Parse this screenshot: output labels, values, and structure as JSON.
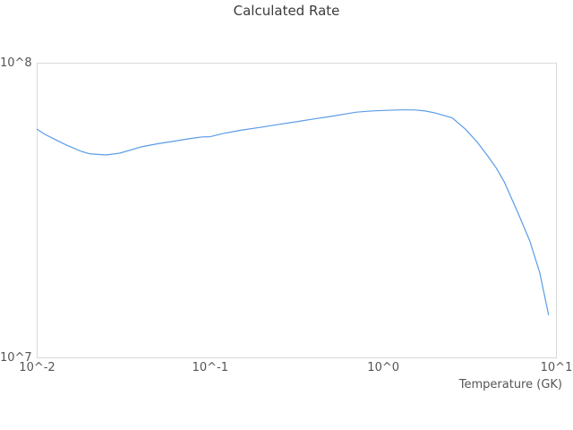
{
  "chart_data": {
    "type": "line",
    "title": "Calculated Rate",
    "xlabel": "Temperature (GK)",
    "ylabel": "",
    "x_scale": "log",
    "y_scale": "log",
    "xlim": [
      0.01,
      10
    ],
    "ylim": [
      10000000.0,
      100000000.0
    ],
    "grid": false,
    "legend": "none",
    "x_ticks": {
      "values": [
        0.01,
        0.1,
        1,
        10
      ],
      "labels": [
        "10^-2",
        "10^-1",
        "10^0",
        "10^1"
      ]
    },
    "y_ticks": {
      "values": [
        10000000.0,
        100000000.0
      ],
      "labels": [
        "10^7",
        "10^8"
      ]
    },
    "series": [
      {
        "name": "calculated_rate",
        "color": "#5b9ce6",
        "x": [
          0.01,
          0.011,
          0.012,
          0.013,
          0.015,
          0.016,
          0.018,
          0.02,
          0.025,
          0.03,
          0.04,
          0.05,
          0.06,
          0.07,
          0.08,
          0.09,
          0.1,
          0.12,
          0.15,
          0.2,
          0.25,
          0.3,
          0.4,
          0.5,
          0.6,
          0.7,
          0.8,
          0.9,
          1.0,
          1.25,
          1.5,
          1.75,
          2.0,
          2.5,
          3.0,
          3.5,
          4.0,
          4.5,
          5.0,
          6.0,
          7.0,
          8.0,
          9.0
        ],
        "y": [
          59700000.0,
          57500000.0,
          56000000.0,
          54700000.0,
          52500000.0,
          51700000.0,
          50200000.0,
          49300000.0,
          48800000.0,
          49500000.0,
          52000000.0,
          53300000.0,
          54200000.0,
          55000000.0,
          55700000.0,
          56200000.0,
          56300000.0,
          57800000.0,
          59200000.0,
          60700000.0,
          62000000.0,
          63000000.0,
          64700000.0,
          66000000.0,
          67200000.0,
          68200000.0,
          68600000.0,
          68900000.0,
          69100000.0,
          69400000.0,
          69400000.0,
          68800000.0,
          67700000.0,
          65200000.0,
          59500000.0,
          53800000.0,
          48500000.0,
          44000000.0,
          39500000.0,
          31000000.0,
          25000000.0,
          19500000.0,
          14000000.0
        ]
      }
    ]
  },
  "colors": {
    "plot_border": "#d9d9d9",
    "title_text": "#3b3b3b",
    "tick_text": "#555555"
  }
}
